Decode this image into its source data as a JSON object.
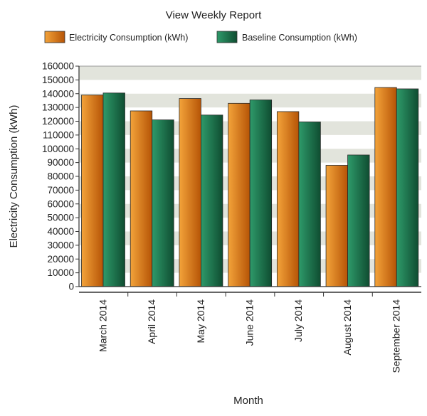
{
  "colors": {
    "series_1_light": "#f3a33a",
    "series_1_dark": "#b65406",
    "series_2_light": "#2e9a6a",
    "series_2_dark": "#0f4d31",
    "band": "#e2e4dc",
    "axis": "#333333"
  },
  "chart_data": {
    "type": "bar",
    "title": "View Weekly Report",
    "xlabel": "Month",
    "ylabel": "Electricity Consumption (kWh)",
    "categories": [
      "March 2014",
      "April 2014",
      "May 2014",
      "June 2014",
      "July 2014",
      "August 2014",
      "September 2014"
    ],
    "series": [
      {
        "name": "Electricity Consumption (kWh)",
        "values": [
          139000,
          127500,
          136500,
          133000,
          127000,
          88000,
          144500
        ]
      },
      {
        "name": "Baseline Consumption (kWh)",
        "values": [
          140500,
          121000,
          124500,
          135500,
          119500,
          95500,
          143500
        ]
      }
    ],
    "ylim": [
      0,
      160000
    ],
    "yticks": [
      0,
      10000,
      20000,
      30000,
      40000,
      50000,
      60000,
      70000,
      80000,
      90000,
      100000,
      110000,
      120000,
      130000,
      140000,
      150000,
      160000
    ],
    "grid": "alternating horizontal bands",
    "legend": "top"
  }
}
